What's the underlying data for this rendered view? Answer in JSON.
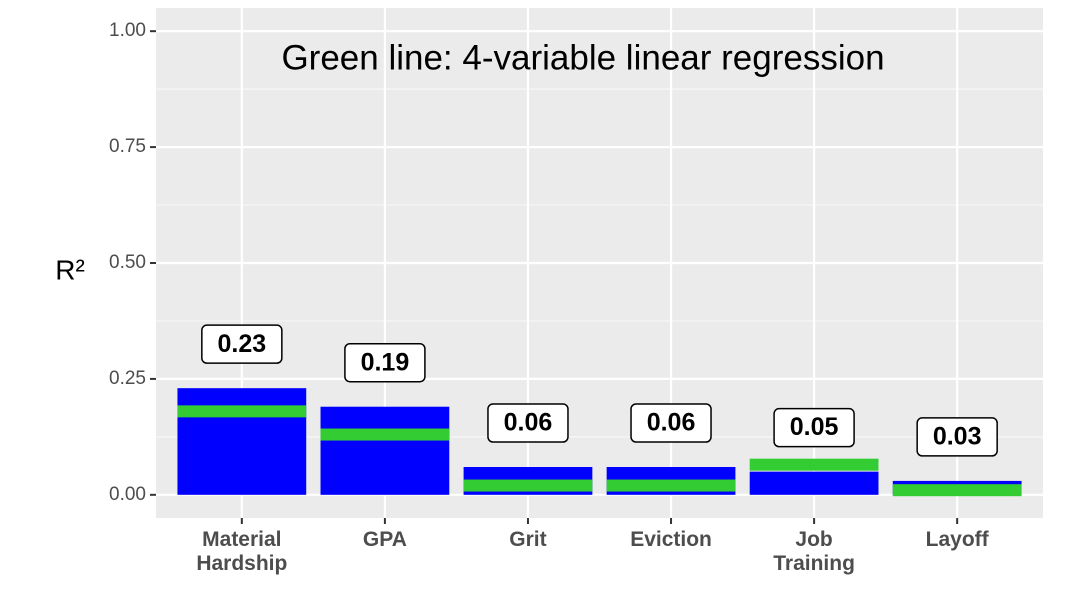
{
  "chart_data": {
    "type": "bar",
    "annotation": "Green line: 4-variable linear regression",
    "y_label": "R²",
    "categories": [
      "Material Hardship",
      "GPA",
      "Grit",
      "Eviction",
      "Job Training",
      "Layoff"
    ],
    "series": [
      {
        "color": "#0000ff",
        "values": [
          0.23,
          0.19,
          0.06,
          0.06,
          0.05,
          0.03
        ]
      },
      {
        "color": "#33cc33",
        "values": [
          0.18,
          0.13,
          0.02,
          0.02,
          0.065,
          0.01
        ]
      }
    ],
    "ylim": [
      -0.05,
      1.05
    ],
    "yticks": [
      {
        "value": 0,
        "label": "0.00"
      },
      0.25,
      {
        "value": 0.5,
        "label": "0.50"
      },
      0.75,
      {
        "value": 1,
        "label": "1.00"
      }
    ],
    "grid": true
  }
}
